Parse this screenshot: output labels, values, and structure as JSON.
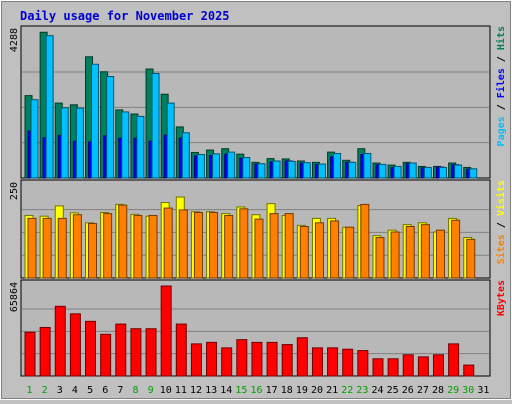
{
  "colors": {
    "background": "#c0c0c0",
    "plot_bg": "#b8b8b8",
    "gridline": "#808080",
    "title": "#0000d0",
    "hits": "#00805c",
    "files": "#0000ff",
    "pages": "#00c0ff",
    "visits": "#ffff00",
    "sites": "#ff8000",
    "kbytes": "#ff0000",
    "weekend_day": "#00a000",
    "weekday": "#000000"
  },
  "chart_data": {
    "type": "bar",
    "title": "Daily usage for November 2025",
    "days": [
      "1",
      "2",
      "3",
      "4",
      "5",
      "6",
      "7",
      "8",
      "9",
      "10",
      "11",
      "12",
      "13",
      "14",
      "15",
      "16",
      "17",
      "18",
      "19",
      "20",
      "21",
      "22",
      "23",
      "24",
      "25",
      "26",
      "27",
      "28",
      "29",
      "30",
      "31"
    ],
    "weekend_days": [
      "1",
      "2",
      "8",
      "9",
      "15",
      "16",
      "22",
      "23",
      "29",
      "30"
    ],
    "panels": [
      {
        "name": "hits-files-pages",
        "ymax_label": "4288",
        "ymax": 4288,
        "legend": [
          {
            "text": "Pages",
            "color_key": "pages"
          },
          {
            "text": " / ",
            "color_key": "weekday"
          },
          {
            "text": "Files",
            "color_key": "files"
          },
          {
            "text": " / ",
            "color_key": "weekday"
          },
          {
            "text": "Hits",
            "color_key": "hits"
          }
        ],
        "series": [
          {
            "key": "hits",
            "values": [
              2420,
              4280,
              2200,
              2150,
              3560,
              3120,
              2000,
              1880,
              3200,
              2460,
              1500,
              750,
              820,
              860,
              700,
              460,
              570,
              560,
              500,
              460,
              760,
              520,
              860,
              440,
              380,
              460,
              340,
              340,
              440,
              310,
              0
            ]
          },
          {
            "key": "files",
            "values": [
              1380,
              1180,
              1250,
              1080,
              1060,
              1240,
              1170,
              1170,
              1080,
              1260,
              1170,
              650,
              660,
              700,
              580,
              410,
              470,
              500,
              440,
              400,
              620,
              460,
              690,
              390,
              310,
              420,
              300,
              320,
              390,
              260,
              0
            ]
          },
          {
            "key": "pages",
            "values": [
              2300,
              4180,
              2060,
              2050,
              3340,
              2980,
              1940,
              1810,
              3070,
              2200,
              1330,
              690,
              710,
              760,
              600,
              420,
              500,
              490,
              450,
              410,
              720,
              460,
              720,
              400,
              340,
              440,
              310,
              310,
              380,
              270,
              0
            ]
          }
        ]
      },
      {
        "name": "visits-sites",
        "ymax_label": "250",
        "ymax": 250,
        "legend": [
          {
            "text": "Sites",
            "color_key": "sites"
          },
          {
            "text": " / ",
            "color_key": "weekday"
          },
          {
            "text": "Visits",
            "color_key": "visits"
          }
        ],
        "series": [
          {
            "key": "visits",
            "values": [
              170,
              168,
              196,
              177,
              150,
              178,
              200,
              173,
              168,
              205,
              220,
              180,
              180,
              175,
              193,
              172,
              202,
              170,
              143,
              162,
              162,
              138,
              197,
              115,
              130,
              145,
              150,
              125,
              162,
              110,
              0
            ]
          },
          {
            "key": "sites",
            "values": [
              162,
              162,
              162,
              172,
              148,
              175,
              198,
              170,
              170,
              190,
              185,
              178,
              178,
              170,
              188,
              160,
              175,
              175,
              140,
              150,
              155,
              138,
              200,
              110,
              125,
              140,
              145,
              130,
              157,
              105,
              0
            ]
          }
        ]
      },
      {
        "name": "kbytes",
        "ymax_label": "65864",
        "ymax": 65864,
        "legend": [
          {
            "text": "KBytes",
            "color_key": "kbytes"
          }
        ],
        "series": [
          {
            "key": "kbytes",
            "values": [
              32000,
              35500,
              51000,
              45500,
              40000,
              30500,
              38000,
              34600,
              34600,
              65864,
              38000,
              23500,
              24600,
              20600,
              26600,
              24600,
              24600,
              23000,
              28000,
              20600,
              20600,
              19600,
              18600,
              12600,
              12600,
              15500,
              14000,
              15500,
              23500,
              8000,
              0
            ]
          }
        ]
      }
    ]
  }
}
